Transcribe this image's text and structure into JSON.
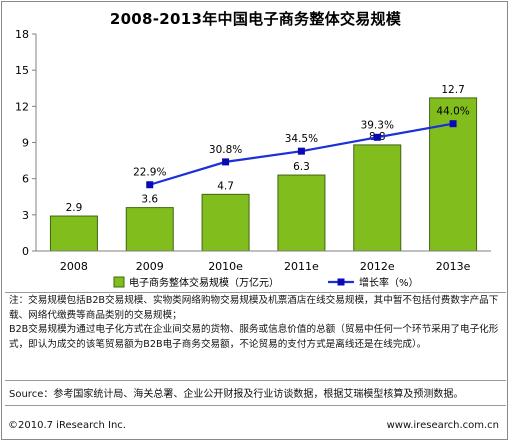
{
  "title": "2008-2013年中国电子商务整体交易规模",
  "chart_data": {
    "type": "bar+line",
    "categories": [
      "2008",
      "2009",
      "2010e",
      "2011e",
      "2012e",
      "2013e"
    ],
    "series": [
      {
        "name": "电子商务整体交易规模（万亿元）",
        "type": "bar",
        "values": [
          2.9,
          3.6,
          4.7,
          6.3,
          8.8,
          12.7
        ],
        "labels": [
          "2.9",
          "3.6",
          "4.7",
          "6.3",
          "8.8",
          "12.7"
        ]
      },
      {
        "name": "增长率（%）",
        "type": "line",
        "values": [
          null,
          22.9,
          30.8,
          34.5,
          39.3,
          44.0
        ],
        "labels": [
          "",
          "22.9%",
          "30.8%",
          "34.5%",
          "39.3%",
          "44.0%"
        ]
      }
    ],
    "yaxis": {
      "ticks": [
        "0",
        "3",
        "6",
        "9",
        "12",
        "15",
        "18"
      ],
      "ylim": [
        0,
        18
      ]
    },
    "line_plot_range": [
      0,
      75
    ],
    "legend": "bottom",
    "colors": {
      "bar": "#82bd1e",
      "bar_edge": "#3f6610",
      "line": "#1a30d8",
      "marker": "#0a0ab4",
      "axis": "#808080"
    }
  },
  "notes": {
    "line1": "注：交易规模包括B2B交易规模、实物类网络购物交易规模及机票酒店在线交易规模，其中暂不包括付费数字产品下载、网络代缴费等商品类别的交易规模；",
    "line2": "B2B交易规模为通过电子化方式在企业间交易的货物、服务或信息价值的总额（贸易中任何一个环节采用了电子化形式，即认为成交的该笔贸易额为B2B电子商务交易额，不论贸易的支付方式是离线还是在线完成）。"
  },
  "source": "Source：参考国家统计局、海关总署、企业公开财报及行业访谈数据，根据艾瑞模型核算及预测数据。",
  "copyright": "©2010.7 iResearch Inc.",
  "website": "www.iresearch.com.cn"
}
